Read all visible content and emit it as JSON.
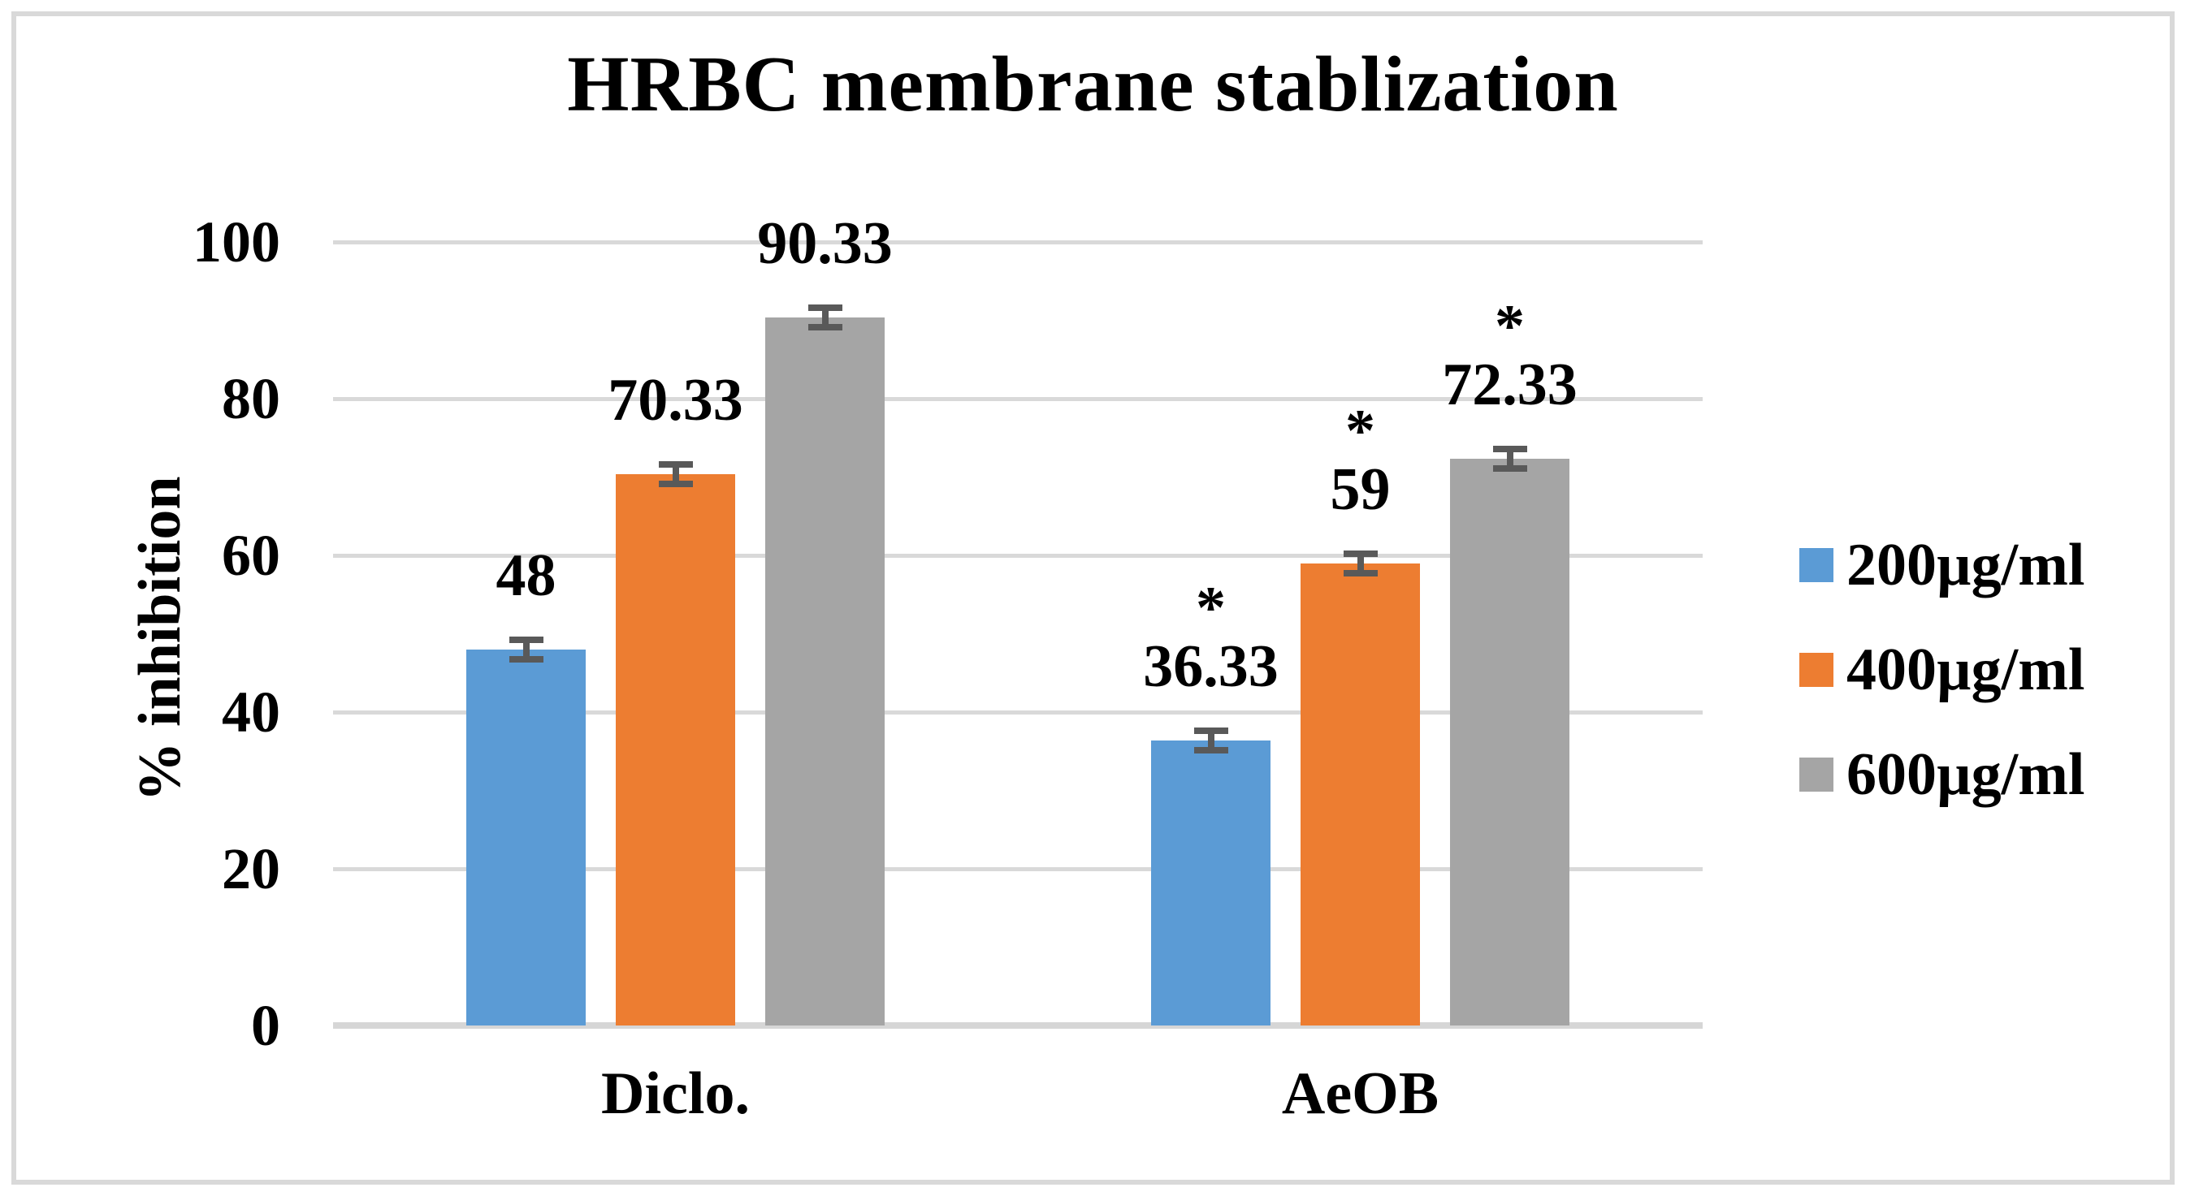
{
  "chart_data": {
    "type": "bar",
    "title": "HRBC membrane stablization",
    "ylabel": "% inhibition",
    "xlabel": "",
    "categories": [
      "Diclo.",
      "AeOB"
    ],
    "series": [
      {
        "name": "200µg/ml",
        "color": "#5B9BD5",
        "values": [
          48,
          36.33
        ],
        "data_labels": [
          "48",
          "36.33"
        ],
        "significance": [
          "",
          "*"
        ]
      },
      {
        "name": "400µg/ml",
        "color": "#ED7D31",
        "values": [
          70.33,
          59
        ],
        "data_labels": [
          "70.33",
          "59"
        ],
        "significance": [
          "",
          "*"
        ]
      },
      {
        "name": "600µg/ml",
        "color": "#A5A5A5",
        "values": [
          90.33,
          72.33
        ],
        "data_labels": [
          "90.33",
          "72.33"
        ],
        "significance": [
          "",
          "*"
        ]
      }
    ],
    "error_bar_value": 1.25,
    "ylim": [
      0,
      100
    ],
    "yticks": [
      "0",
      "20",
      "40",
      "60",
      "80",
      "100"
    ],
    "grid": true,
    "legend_position": "right",
    "colors": {
      "gridline": "#D9D9D9",
      "baseline": "#D6D6D6",
      "error_bar": "#595959",
      "frame_border": "#D9D9D9",
      "text": "#000000",
      "background": "#FFFFFF"
    }
  }
}
